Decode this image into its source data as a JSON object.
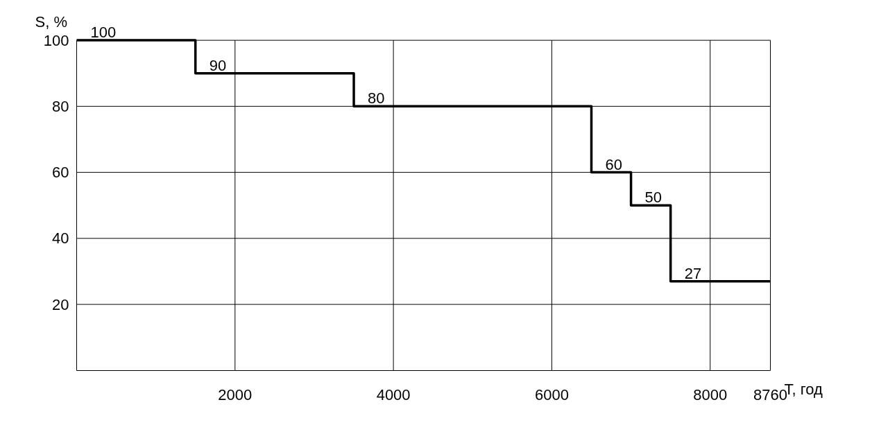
{
  "chart_data": {
    "type": "step",
    "xlabel": "T, год",
    "ylabel": "S, %",
    "x": [
      0,
      1500,
      3500,
      6500,
      7000,
      7500,
      8760
    ],
    "series": [
      {
        "color": "#000000",
        "values": [
          100,
          90,
          80,
          60,
          50,
          27,
          27
        ],
        "value_labels": [
          "100",
          "90",
          "80",
          "60",
          "50",
          "27",
          null
        ]
      }
    ],
    "xlim": [
      0,
      8760
    ],
    "xticks": [
      2000,
      4000,
      6000,
      8000,
      8760
    ],
    "ylim": [
      0,
      100
    ],
    "yticks": [
      20,
      40,
      60,
      80,
      100
    ],
    "grid": true
  }
}
